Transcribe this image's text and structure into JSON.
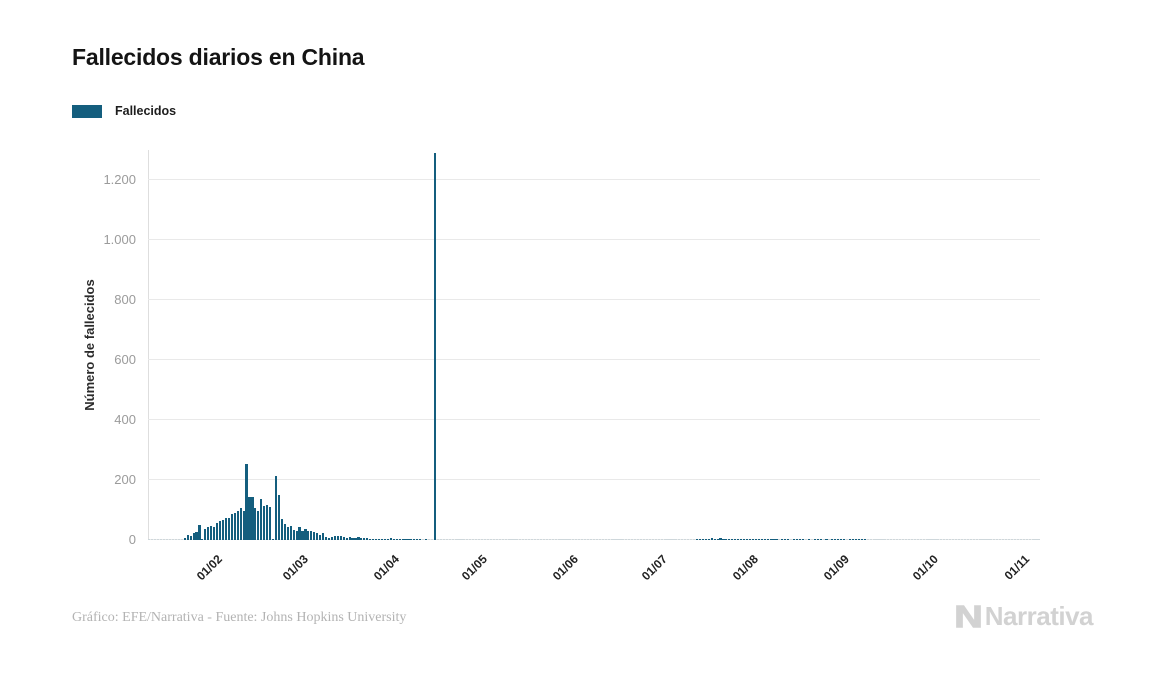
{
  "header": {
    "title": "Fallecidos diarios en China"
  },
  "legend": {
    "label": "Fallecidos",
    "color": "#145e7e"
  },
  "footer": {
    "attribution": "Gráfico: EFE/Narrativa - Fuente: Johns Hopkins University",
    "logo_text": "Narrativa",
    "logo_color": "#d2d2d2"
  },
  "chart_data": {
    "type": "bar",
    "title": "Fallecidos diarios en China",
    "series_name": "Fallecidos",
    "xlabel": "",
    "ylabel": "Número de fallecidos",
    "ylim": [
      0,
      1300
    ],
    "grid": "horizontal",
    "legend_position": "top-left",
    "bar_color": "#145e7e",
    "y_ticks": [
      0,
      200,
      400,
      600,
      800,
      1000,
      1200
    ],
    "y_tick_labels": [
      "0",
      "200",
      "400",
      "600",
      "800",
      "1.000",
      "1.200"
    ],
    "x_tick_labels": [
      "01/02",
      "01/03",
      "01/04",
      "01/05",
      "01/06",
      "01/07",
      "01/08",
      "01/09",
      "01/10",
      "01/11"
    ],
    "x_tick_indices": [
      21,
      50,
      81,
      111,
      142,
      172,
      203,
      234,
      264,
      295
    ],
    "start_date": "2020-01-11",
    "max_value": 1290,
    "max_value_date": "2020-04-17",
    "values": [
      0,
      0,
      0,
      0,
      0,
      0,
      0,
      0,
      0,
      0,
      0,
      0,
      8,
      16,
      15,
      24,
      26,
      49,
      2,
      38,
      43,
      46,
      45,
      57,
      64,
      66,
      73,
      73,
      86,
      89,
      97,
      108,
      97,
      254,
      143,
      142,
      106,
      98,
      136,
      115,
      118,
      109,
      5,
      213,
      150,
      71,
      52,
      44,
      47,
      35,
      31,
      42,
      31,
      38,
      31,
      30,
      28,
      22,
      17,
      22,
      11,
      7,
      11,
      13,
      14,
      12,
      11,
      8,
      10,
      7,
      6,
      9,
      7,
      8,
      6,
      5,
      3,
      5,
      3,
      2,
      1,
      4,
      6,
      2,
      3,
      1,
      2,
      2,
      1,
      1,
      2,
      1,
      1,
      0,
      1,
      0,
      0,
      1290,
      0,
      0,
      0,
      0,
      0,
      0,
      0,
      0,
      0,
      0,
      0,
      0,
      0,
      0,
      0,
      0,
      0,
      0,
      0,
      0,
      0,
      0,
      0,
      0,
      0,
      0,
      0,
      0,
      0,
      0,
      0,
      0,
      0,
      0,
      0,
      0,
      0,
      0,
      0,
      0,
      0,
      0,
      0,
      0,
      0,
      0,
      0,
      0,
      0,
      0,
      0,
      0,
      0,
      0,
      0,
      0,
      0,
      0,
      0,
      0,
      0,
      0,
      0,
      0,
      0,
      0,
      0,
      0,
      0,
      0,
      0,
      0,
      0,
      0,
      0,
      0,
      0,
      0,
      0,
      0,
      0,
      0,
      0,
      0,
      0,
      0,
      0,
      0,
      1,
      2,
      3,
      2,
      5,
      7,
      4,
      3,
      6,
      5,
      4,
      3,
      2,
      3,
      4,
      2,
      1,
      2,
      3,
      2,
      1,
      2,
      1,
      1,
      2,
      3,
      2,
      1,
      0,
      1,
      2,
      1,
      0,
      1,
      1,
      2,
      1,
      0,
      1,
      0,
      1,
      2,
      1,
      0,
      1,
      0,
      1,
      2,
      1,
      2,
      1,
      0,
      1,
      2,
      1,
      3,
      1,
      2,
      0,
      0,
      0,
      0,
      0,
      0,
      0,
      0,
      0,
      0,
      0,
      0,
      0,
      0,
      0,
      0,
      0,
      0,
      0,
      0,
      0,
      0,
      0,
      0,
      0,
      0,
      0,
      0,
      0,
      0,
      0,
      0,
      0,
      0,
      0,
      0,
      0,
      0,
      0,
      0,
      0,
      0,
      0,
      0,
      0,
      0,
      0,
      0,
      0,
      0,
      0,
      0,
      0,
      0,
      0,
      0,
      0,
      0,
      0
    ]
  }
}
